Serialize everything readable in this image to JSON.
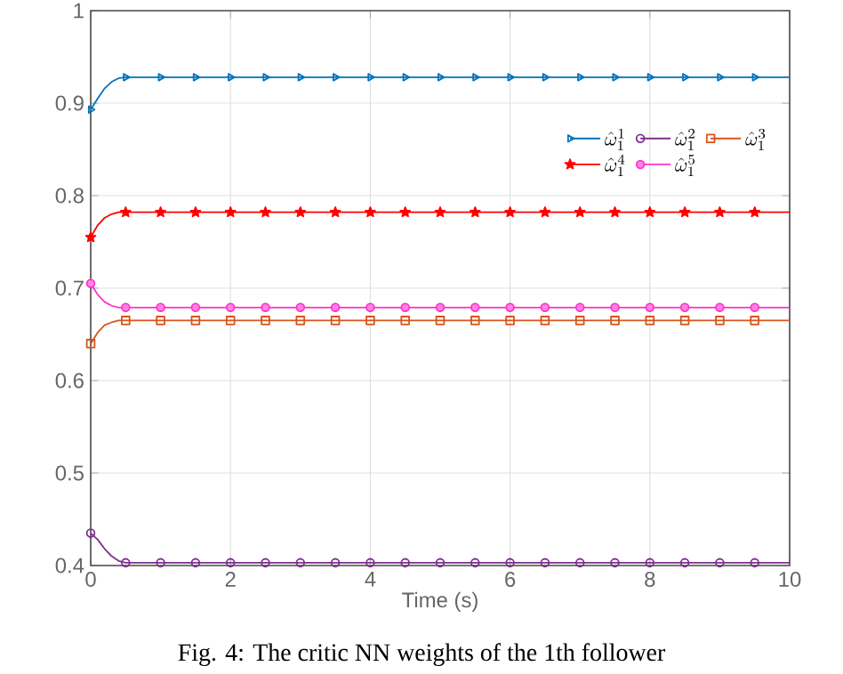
{
  "chart_data": {
    "type": "line",
    "xlabel": "Time (s)",
    "annotations": [
      "Fig. 4: The critic NN weights of the 1th follower"
    ],
    "xlim": [
      0,
      10
    ],
    "ylim": [
      0.4,
      1
    ],
    "xticks": [
      0,
      2,
      4,
      6,
      8,
      10
    ],
    "yticks": [
      0.4,
      0.5,
      0.6,
      0.7,
      0.8,
      0.9,
      1
    ],
    "grid": true,
    "legend": "top right",
    "line_style": "solid",
    "x": [
      0,
      0.1,
      0.2,
      0.3,
      0.4,
      0.5,
      1,
      1.5,
      2,
      2.5,
      3,
      3.5,
      4,
      4.5,
      5,
      5.5,
      6,
      6.5,
      7,
      7.5,
      8,
      8.5,
      9,
      9.5,
      10
    ],
    "series": [
      {
        "name": "\\hat{\\omega}_1^1",
        "color": "#0072bd",
        "marker": "triangle",
        "values": [
          0.893,
          0.905,
          0.916,
          0.923,
          0.927,
          0.928,
          0.928,
          0.928,
          0.928,
          0.928,
          0.928,
          0.928,
          0.928,
          0.928,
          0.928,
          0.928,
          0.928,
          0.928,
          0.928,
          0.928,
          0.928,
          0.928,
          0.928,
          0.928,
          0.928
        ]
      },
      {
        "name": "\\hat{\\omega}_1^2",
        "color": "#7e2f8e",
        "marker": "circle",
        "values": [
          0.435,
          0.428,
          0.418,
          0.41,
          0.405,
          0.403,
          0.403,
          0.403,
          0.403,
          0.403,
          0.403,
          0.403,
          0.403,
          0.403,
          0.403,
          0.403,
          0.403,
          0.403,
          0.403,
          0.403,
          0.403,
          0.403,
          0.403,
          0.403,
          0.403
        ]
      },
      {
        "name": "\\hat{\\omega}_1^3",
        "color": "#d95319",
        "marker": "square",
        "values": [
          0.64,
          0.652,
          0.66,
          0.663,
          0.665,
          0.665,
          0.665,
          0.665,
          0.665,
          0.665,
          0.665,
          0.665,
          0.665,
          0.665,
          0.665,
          0.665,
          0.665,
          0.665,
          0.665,
          0.665,
          0.665,
          0.665,
          0.665,
          0.665,
          0.665
        ]
      },
      {
        "name": "\\hat{\\omega}_1^4",
        "color": "#ff0000",
        "marker": "star",
        "values": [
          0.755,
          0.768,
          0.776,
          0.78,
          0.782,
          0.782,
          0.782,
          0.782,
          0.782,
          0.782,
          0.782,
          0.782,
          0.782,
          0.782,
          0.782,
          0.782,
          0.782,
          0.782,
          0.782,
          0.782,
          0.782,
          0.782,
          0.782,
          0.782,
          0.782
        ]
      },
      {
        "name": "\\hat{\\omega}_1^5",
        "color": "#ff33cc",
        "marker": "circle",
        "values": [
          0.705,
          0.693,
          0.685,
          0.681,
          0.679,
          0.679,
          0.679,
          0.679,
          0.679,
          0.679,
          0.679,
          0.679,
          0.679,
          0.679,
          0.679,
          0.679,
          0.679,
          0.679,
          0.679,
          0.679,
          0.679,
          0.679,
          0.679,
          0.679,
          0.679
        ]
      }
    ]
  }
}
